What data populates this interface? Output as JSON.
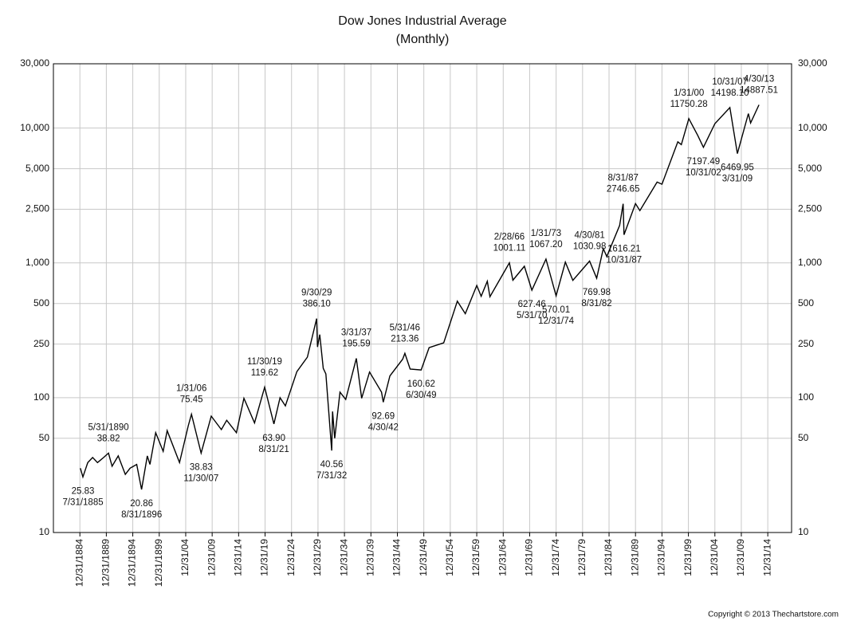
{
  "chart_data": {
    "type": "line",
    "title": "Dow Jones Industrial Average",
    "subtitle": "(Monthly)",
    "copyright": "Copyright © 2013 Thechartstore.com",
    "log_scale": true,
    "grid": true,
    "xlim": [
      "1879-12-31",
      "2019-06-30"
    ],
    "ylim": [
      10,
      30000
    ],
    "yticks": [
      10,
      50,
      100,
      250,
      500,
      {
        "value": 1000,
        "label": "1,000"
      },
      {
        "value": 2500,
        "label": "2,500"
      },
      {
        "value": 5000,
        "label": "5,000"
      },
      {
        "value": 10000,
        "label": "10,000"
      },
      {
        "value": 30000,
        "label": "30,000"
      }
    ],
    "xticks": [
      {
        "value": "1884-12-31",
        "label": "12/31/1884"
      },
      {
        "value": "1889-12-31",
        "label": "12/31/1889"
      },
      {
        "value": "1894-12-31",
        "label": "12/31/1894"
      },
      {
        "value": "1899-12-31",
        "label": "12/31/1899"
      },
      {
        "value": "1904-12-31",
        "label": "12/31/04"
      },
      {
        "value": "1909-12-31",
        "label": "12/31/09"
      },
      {
        "value": "1914-12-31",
        "label": "12/31/14"
      },
      {
        "value": "1919-12-31",
        "label": "12/31/19"
      },
      {
        "value": "1924-12-31",
        "label": "12/31/24"
      },
      {
        "value": "1929-12-31",
        "label": "12/31/29"
      },
      {
        "value": "1934-12-31",
        "label": "12/31/34"
      },
      {
        "value": "1939-12-31",
        "label": "12/31/39"
      },
      {
        "value": "1944-12-31",
        "label": "12/31/44"
      },
      {
        "value": "1949-12-31",
        "label": "12/31/49"
      },
      {
        "value": "1954-12-31",
        "label": "12/31/54"
      },
      {
        "value": "1959-12-31",
        "label": "12/31/59"
      },
      {
        "value": "1964-12-31",
        "label": "12/31/64"
      },
      {
        "value": "1969-12-31",
        "label": "12/31/69"
      },
      {
        "value": "1974-12-31",
        "label": "12/31/74"
      },
      {
        "value": "1979-12-31",
        "label": "12/31/79"
      },
      {
        "value": "1984-12-31",
        "label": "12/31/84"
      },
      {
        "value": "1989-12-31",
        "label": "12/31/89"
      },
      {
        "value": "1994-12-31",
        "label": "12/31/94"
      },
      {
        "value": "1999-12-31",
        "label": "12/31/99"
      },
      {
        "value": "2004-12-31",
        "label": "12/31/04"
      },
      {
        "value": "2009-12-31",
        "label": "12/31/09"
      },
      {
        "value": "2014-12-31",
        "label": "12/31/14"
      }
    ],
    "series": [
      {
        "color": "#000000",
        "x": [
          "1885-01-31",
          "1885-07-31",
          "1886-06-30",
          "1887-05-31",
          "1888-04-30",
          "1889-06-30",
          "1890-05-31",
          "1891-01-31",
          "1892-03-31",
          "1893-07-31",
          "1894-06-30",
          "1895-09-30",
          "1896-08-31",
          "1897-09-30",
          "1898-03-31",
          "1899-04-30",
          "1900-09-30",
          "1901-06-30",
          "1903-10-31",
          "1905-06-30",
          "1906-01-31",
          "1907-11-30",
          "1909-10-31",
          "1911-09-30",
          "1912-09-30",
          "1914-07-31",
          "1915-12-31",
          "1917-12-31",
          "1919-11-30",
          "1921-08-31",
          "1922-10-31",
          "1923-10-31",
          "1925-12-31",
          "1927-12-31",
          "1929-09-30",
          "1929-11-30",
          "1930-04-30",
          "1930-12-31",
          "1931-06-30",
          "1932-07-31",
          "1932-09-30",
          "1933-02-28",
          "1934-02-28",
          "1935-03-31",
          "1937-03-31",
          "1938-03-31",
          "1939-09-30",
          "1941-12-31",
          "1942-04-30",
          "1943-07-31",
          "1945-12-31",
          "1946-05-31",
          "1947-05-31",
          "1949-06-30",
          "1950-12-31",
          "1953-09-30",
          "1956-04-30",
          "1957-10-31",
          "1959-12-31",
          "1960-10-31",
          "1961-12-31",
          "1962-06-30",
          "1966-02-28",
          "1966-10-31",
          "1968-12-31",
          "1970-05-31",
          "1973-01-31",
          "1974-12-31",
          "1976-09-30",
          "1978-02-28",
          "1981-04-30",
          "1982-08-31",
          "1983-11-30",
          "1984-07-31",
          "1986-12-31",
          "1987-08-31",
          "1987-10-31",
          "1989-12-31",
          "1990-10-31",
          "1994-01-31",
          "1994-12-31",
          "1997-12-31",
          "1998-08-31",
          "2000-01-31",
          "2001-09-30",
          "2002-10-31",
          "2004-12-31",
          "2007-10-31",
          "2009-03-31",
          "2011-04-30",
          "2011-09-30",
          "2013-04-30"
        ],
        "values": [
          30,
          25.83,
          33,
          36,
          33,
          36,
          38.82,
          31,
          37,
          27,
          30,
          32,
          20.86,
          37,
          32,
          55,
          40,
          57,
          33,
          62,
          75.45,
          38.83,
          73,
          58,
          68,
          55,
          99,
          65,
          119.62,
          63.9,
          100,
          87,
          156,
          200,
          386.1,
          238,
          294,
          165,
          150,
          40.56,
          79,
          50,
          110,
          97,
          195.59,
          99,
          155,
          110,
          92.69,
          145,
          193,
          213.36,
          163,
          160.62,
          235,
          255,
          520,
          420,
          680,
          566,
          731,
          561,
          1001.11,
          744,
          944,
          627.46,
          1067.2,
          570.01,
          1014,
          742,
          1030.98,
          769.98,
          1276,
          1115,
          1896,
          2746.65,
          1616.21,
          2753,
          2442,
          3978,
          3834,
          7908,
          7539,
          11750.28,
          8847,
          7197.49,
          10783,
          14198.1,
          6469.95,
          12811,
          10913,
          14887.51
        ]
      }
    ],
    "annotations": [
      {
        "x": "1885-07-31",
        "value": 25.83,
        "date": "7/31/1885",
        "position": "below"
      },
      {
        "x": "1890-05-31",
        "value": 38.82,
        "date": "5/31/1890",
        "position": "above"
      },
      {
        "x": "1896-08-31",
        "value": 20.86,
        "date": "8/31/1896",
        "position": "below"
      },
      {
        "x": "1906-01-31",
        "value": 75.45,
        "date": "1/31/06",
        "position": "above"
      },
      {
        "x": "1907-11-30",
        "value": 38.83,
        "date": "11/30/07",
        "position": "below"
      },
      {
        "x": "1919-11-30",
        "value": 119.62,
        "date": "11/30/19",
        "position": "above"
      },
      {
        "x": "1921-08-31",
        "value": 63.9,
        "label": "63.90",
        "date": "8/31/21",
        "position": "below"
      },
      {
        "x": "1929-09-30",
        "value": 386.1,
        "label": "386.10",
        "date": "9/30/29",
        "position": "above"
      },
      {
        "x": "1932-07-31",
        "value": 40.56,
        "date": "7/31/32",
        "position": "below"
      },
      {
        "x": "1937-03-31",
        "value": 195.59,
        "date": "3/31/37",
        "position": "above"
      },
      {
        "x": "1942-04-30",
        "value": 92.69,
        "date": "4/30/42",
        "position": "below"
      },
      {
        "x": "1946-05-31",
        "value": 213.36,
        "date": "5/31/46",
        "position": "above"
      },
      {
        "x": "1949-06-30",
        "value": 160.62,
        "date": "6/30/49",
        "position": "below"
      },
      {
        "x": "1966-02-28",
        "value": 1001.11,
        "date": "2/28/66",
        "position": "above"
      },
      {
        "x": "1970-05-31",
        "value": 627.46,
        "date": "5/31/70",
        "position": "below"
      },
      {
        "x": "1973-01-31",
        "value": 1067.2,
        "label": "1067.20",
        "date": "1/31/73",
        "position": "above"
      },
      {
        "x": "1974-12-31",
        "value": 570.01,
        "date": "12/31/74",
        "position": "below"
      },
      {
        "x": "1981-04-30",
        "value": 1030.98,
        "date": "4/30/81",
        "position": "above"
      },
      {
        "x": "1982-08-31",
        "value": 769.98,
        "date": "8/31/82",
        "position": "below"
      },
      {
        "x": "1987-08-31",
        "value": 2746.65,
        "date": "8/31/87",
        "position": "above"
      },
      {
        "x": "1987-10-31",
        "value": 1616.21,
        "date": "10/31/87",
        "position": "below"
      },
      {
        "x": "2000-01-31",
        "value": 11750.28,
        "date": "1/31/00",
        "position": "above"
      },
      {
        "x": "2002-10-31",
        "value": 7197.49,
        "date": "10/31/02",
        "position": "below"
      },
      {
        "x": "2007-10-31",
        "value": 14198.1,
        "label": "14198.10",
        "date": "10/31/07",
        "position": "above"
      },
      {
        "x": "2009-03-31",
        "value": 6469.95,
        "date": "3/31/09",
        "position": "below"
      },
      {
        "x": "2013-04-30",
        "value": 14887.51,
        "date": "4/30/13",
        "position": "above"
      }
    ]
  }
}
